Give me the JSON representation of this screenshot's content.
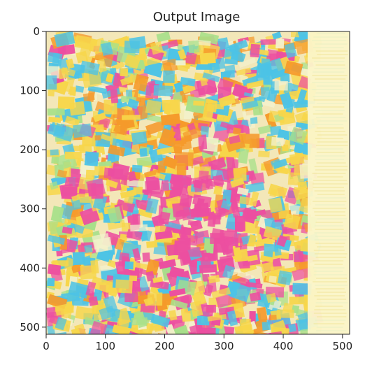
{
  "figure": {
    "title": "Output Image"
  },
  "chart_data": {
    "type": "image",
    "title": "Output Image",
    "xlabel": "",
    "ylabel": "",
    "xlim": [
      0,
      512
    ],
    "ylim": [
      512,
      0
    ],
    "x_ticks": [
      0,
      100,
      200,
      300,
      400,
      500
    ],
    "y_ticks": [
      0,
      100,
      200,
      300,
      400,
      500
    ],
    "x_tick_labels": [
      "0",
      "100",
      "200",
      "300",
      "400",
      "500"
    ],
    "y_tick_labels": [
      "0",
      "100",
      "200",
      "300",
      "400",
      "500"
    ],
    "image_description": "stylized mosaic of colorful paper-like patches in yellow, cyan, pink and orange; pink blob concentrated lower-center, orange streaks upper-center, pale yellow vertical band on the right",
    "palette": [
      "#f7d64a",
      "#4cc3e6",
      "#ec4fa0",
      "#f59a2b",
      "#a8e08a",
      "#f3f1cc"
    ]
  }
}
